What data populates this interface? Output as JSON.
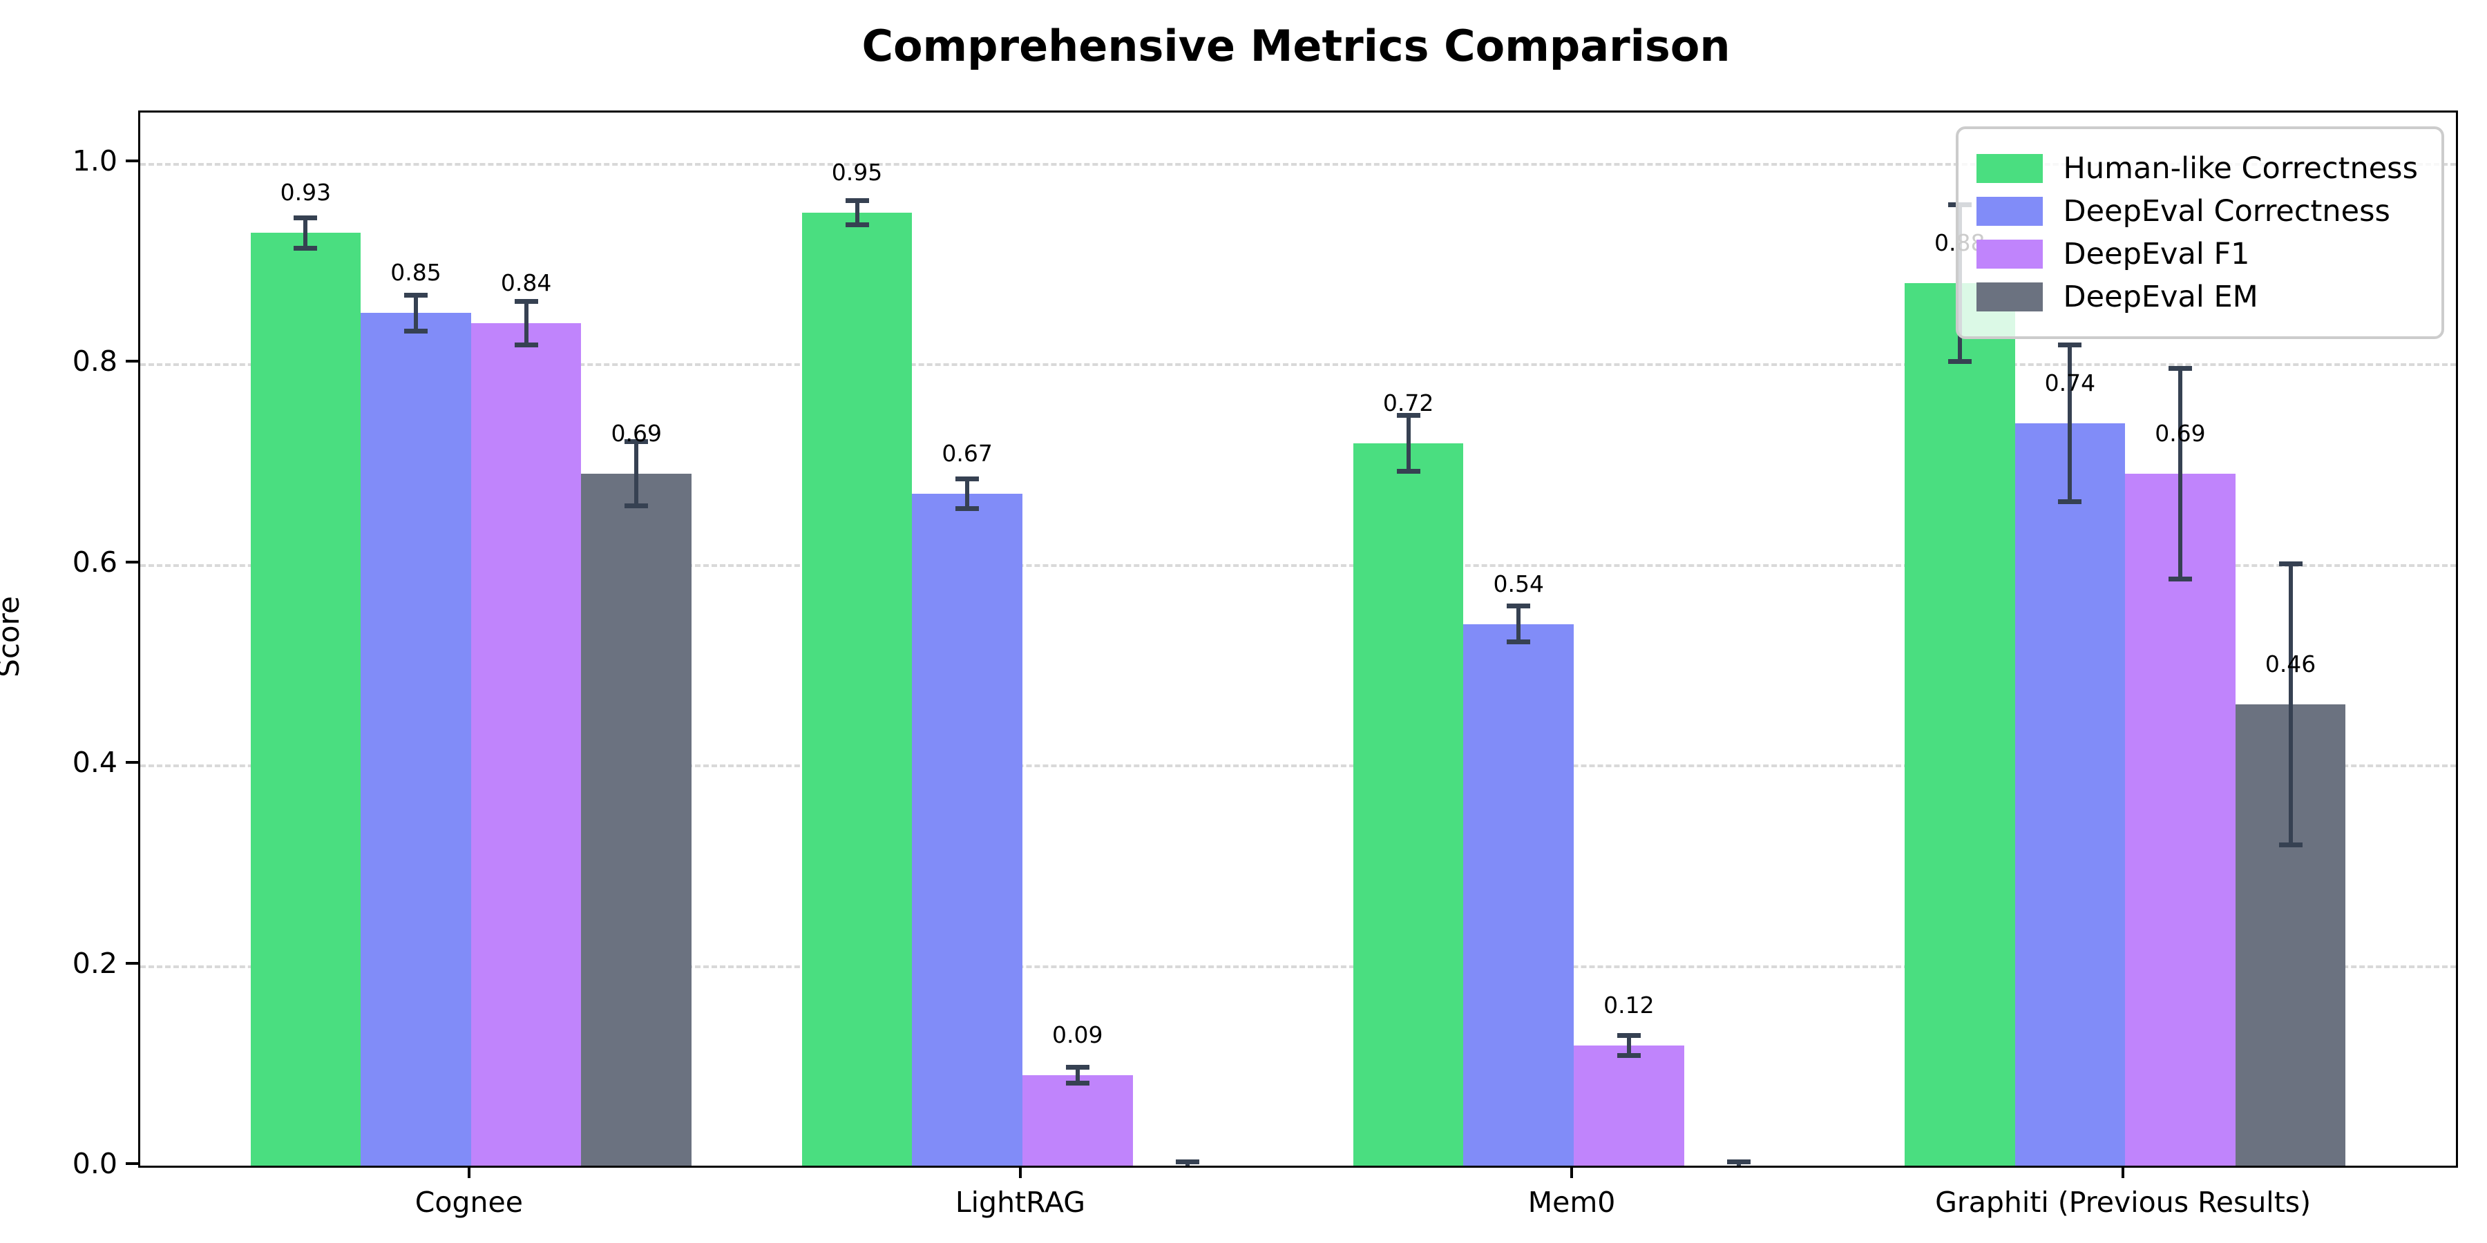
{
  "figure": {
    "title": "Comprehensive Metrics Comparison"
  },
  "chart_data": {
    "type": "bar",
    "title": "Comprehensive Metrics Comparison",
    "xlabel": "",
    "ylabel": "Score",
    "ylim": [
      0,
      1.05
    ],
    "yticks": [
      {
        "value": 0.0,
        "label": "0.0"
      },
      {
        "value": 0.2,
        "label": "0.2"
      },
      {
        "value": 0.4,
        "label": "0.4"
      },
      {
        "value": 0.6,
        "label": "0.6"
      },
      {
        "value": 0.8,
        "label": "0.8"
      },
      {
        "value": 1.0,
        "label": "1.0"
      }
    ],
    "grid": {
      "axis": "y",
      "style": "dashed",
      "color": "#d9d9d9"
    },
    "categories": [
      "Cognee",
      "LightRAG",
      "Mem0",
      "Graphiti (Previous Results)"
    ],
    "series": [
      {
        "name": "Human-like Correctness",
        "color": "#4ade80",
        "values": [
          0.93,
          0.95,
          0.72,
          0.88
        ],
        "errors": [
          0.015,
          0.012,
          0.028,
          0.078
        ],
        "labels": [
          "0.93",
          "0.95",
          "0.72",
          "0.88"
        ]
      },
      {
        "name": "DeepEval Correctness",
        "color": "#818cf8",
        "values": [
          0.85,
          0.67,
          0.54,
          0.74
        ],
        "errors": [
          0.018,
          0.015,
          0.018,
          0.078
        ],
        "labels": [
          "0.85",
          "0.67",
          "0.54",
          "0.74"
        ]
      },
      {
        "name": "DeepEval F1",
        "color": "#c084fc",
        "values": [
          0.84,
          0.09,
          0.12,
          0.69
        ],
        "errors": [
          0.022,
          0.008,
          0.01,
          0.105
        ],
        "labels": [
          "0.84",
          "0.09",
          "0.12",
          "0.69"
        ]
      },
      {
        "name": "DeepEval EM",
        "color": "#6b7280",
        "values": [
          0.69,
          0.0,
          0.0,
          0.46
        ],
        "errors": [
          0.032,
          0.004,
          0.004,
          0.14
        ],
        "labels": [
          "0.69",
          "",
          "",
          "0.46"
        ]
      }
    ],
    "error_bar_color": "#364152",
    "legend": {
      "position": "upper right",
      "entries": [
        "Human-like Correctness",
        "DeepEval Correctness",
        "DeepEval F1",
        "DeepEval EM"
      ]
    },
    "layout_hints": {
      "bar_width_units": 0.2,
      "x_unit_span": 4.2,
      "x_left_pad_units": 0.6
    }
  }
}
